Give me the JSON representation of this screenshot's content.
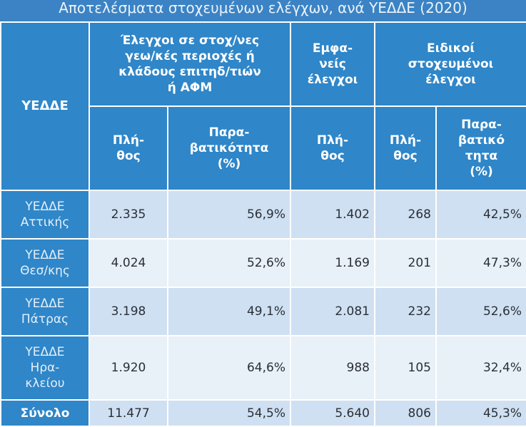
{
  "title": "Αποτελέσματα στοχευμένων ελέγχων, ανά ΥΕΔΔΕ (2020)",
  "header": {
    "row_label": "ΥΕΔΔΕ",
    "group1": [
      "Έλεγχοι σε στοχ/νες",
      "γεω/κές περιοχές ή",
      "κλάδους επιτηδ/τιών",
      "ή ΑΦΜ"
    ],
    "group2": [
      "Εμφα-",
      "νείς",
      "έλεγχοι"
    ],
    "group3": [
      "Ειδικοί",
      "στοχευμένοι",
      "έλεγχοι"
    ],
    "g1_count": [
      "Πλή-",
      "θος"
    ],
    "g1_rate": [
      "Παρα-",
      "βατικότητα",
      "(%)"
    ],
    "g2_count": [
      "Πλή-",
      "θος"
    ],
    "g3_count": [
      "Πλή-",
      "θος"
    ],
    "g3_rate": [
      "Παρα-",
      "βατικό",
      "τητα",
      "(%)"
    ]
  },
  "rows": [
    {
      "label": [
        "ΥΕΔΔΕ",
        "Αττικής"
      ],
      "g1_count": "2.335",
      "g1_rate": "56,9%",
      "g2_count": "1.402",
      "g3_count": "268",
      "g3_rate": "42,5%"
    },
    {
      "label": [
        "ΥΕΔΔΕ",
        "Θεσ/κης"
      ],
      "g1_count": "4.024",
      "g1_rate": "52,6%",
      "g2_count": "1.169",
      "g3_count": "201",
      "g3_rate": "47,3%"
    },
    {
      "label": [
        "ΥΕΔΔΕ",
        "Πάτρας"
      ],
      "g1_count": "3.198",
      "g1_rate": "49,1%",
      "g2_count": "2.081",
      "g3_count": "232",
      "g3_rate": "52,6%"
    },
    {
      "label": [
        "ΥΕΔΔΕ",
        "Ηρα-",
        "κλείου"
      ],
      "g1_count": "1.920",
      "g1_rate": "64,6%",
      "g2_count": "988",
      "g3_count": "105",
      "g3_rate": "32,4%"
    }
  ],
  "total": {
    "label": "Σύνολο",
    "g1_count": "11.477",
    "g1_rate": "54,5%",
    "g2_count": "5.640",
    "g3_count": "806",
    "g3_rate": "45,3%"
  }
}
